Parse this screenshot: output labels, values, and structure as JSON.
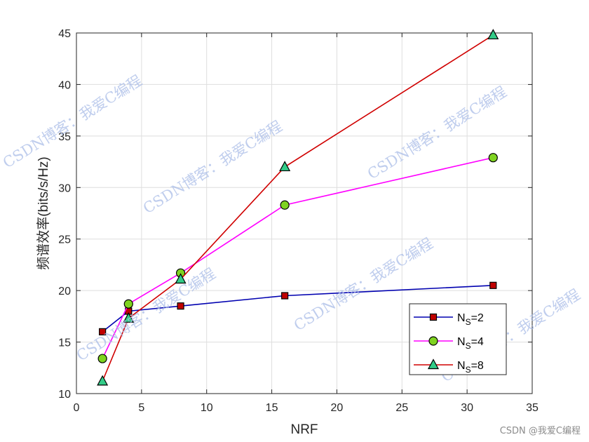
{
  "chart_data": {
    "type": "line",
    "xlabel": "NRF",
    "ylabel": "频谱效率(bits/s/Hz)",
    "xlim": [
      0,
      35
    ],
    "ylim": [
      10,
      45
    ],
    "xticks": [
      0,
      5,
      10,
      15,
      20,
      25,
      30,
      35
    ],
    "yticks": [
      10,
      15,
      20,
      25,
      30,
      35,
      40,
      45
    ],
    "grid": true,
    "legend_position": "lower-right",
    "x": [
      2,
      4,
      8,
      16,
      32
    ],
    "series": [
      {
        "name": "N_S=2",
        "name_main": "N",
        "name_sub": "S",
        "name_tail": "=2",
        "color": "#0000b0",
        "marker": "square",
        "marker_fill": "#c00000",
        "values": [
          16.0,
          18.0,
          18.5,
          19.5,
          20.5
        ]
      },
      {
        "name": "N_S=4",
        "name_main": "N",
        "name_sub": "S",
        "name_tail": "=4",
        "color": "#ff00ff",
        "marker": "circle",
        "marker_fill": "#7fd321",
        "values": [
          13.4,
          18.7,
          21.7,
          28.3,
          32.9
        ]
      },
      {
        "name": "N_S=8",
        "name_main": "N",
        "name_sub": "S",
        "name_tail": "=8",
        "color": "#d00000",
        "marker": "triangle",
        "marker_fill": "#33cc88",
        "values": [
          11.2,
          17.3,
          21.1,
          32.0,
          44.8
        ]
      }
    ]
  },
  "watermark": "CSDN博客：我爱C编程",
  "credit": "CSDN @我爱C编程"
}
